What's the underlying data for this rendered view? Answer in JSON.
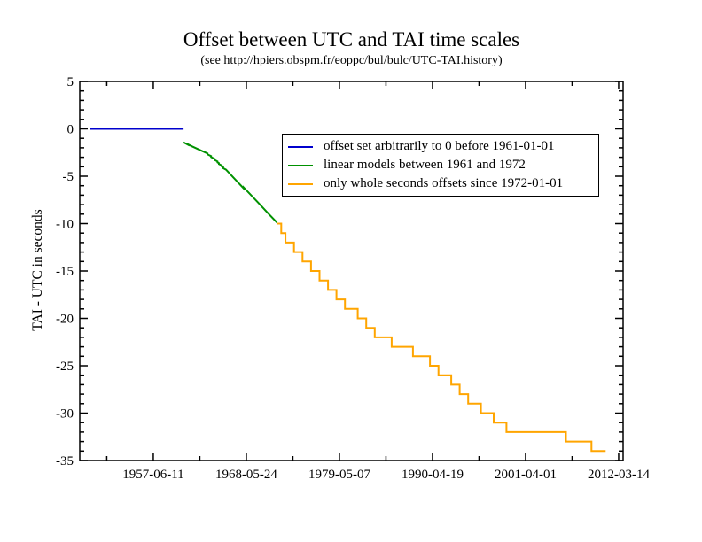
{
  "title": "Offset between UTC and TAI time scales",
  "subtitle": "(see http://hpiers.obspm.fr/eoppc/bul/bulc/UTC-TAI.history)",
  "y_axis": {
    "label": "TAI - UTC in seconds",
    "max": 5,
    "min": -35,
    "major_ticks": [
      5,
      0,
      -5,
      -10,
      -15,
      -20,
      -25,
      -30,
      -35
    ],
    "minor_step": 1
  },
  "x_axis": {
    "min_date": "1948-10-16",
    "max_date": "2012-09-22",
    "tick_labels": [
      "1957-06-11",
      "1968-05-24",
      "1979-05-07",
      "1990-04-19",
      "2001-04-01",
      "2012-03-14"
    ]
  },
  "chart_data": {
    "type": "line",
    "title": "Offset between UTC and TAI time scales",
    "subtitle": "(see http://hpiers.obspm.fr/eoppc/bul/bulc/UTC-TAI.history)",
    "ylabel": "TAI - UTC in seconds",
    "ylim": [
      -35,
      5
    ],
    "x_range": [
      "1948-10-16",
      "2012-09-22"
    ],
    "grid": false,
    "legend_position": "upper-center-right",
    "series": [
      {
        "name": "offset set arbitrarily to 0 before 1961-01-01",
        "color": "#0000cd",
        "points": [
          [
            "1950-01-01",
            0
          ],
          [
            "1961-01-01",
            0
          ]
        ]
      },
      {
        "name": "linear models between 1961 and 1972",
        "color": "#009100",
        "points": [
          [
            "1961-01-01",
            -1.42
          ],
          [
            "1961-08-01",
            -1.7
          ],
          [
            "1961-08-01",
            -1.65
          ],
          [
            "1962-01-01",
            -1.85
          ],
          [
            "1963-01-01",
            -2.26
          ],
          [
            "1963-11-01",
            -2.6
          ],
          [
            "1963-11-01",
            -2.7
          ],
          [
            "1964-01-01",
            -2.77
          ],
          [
            "1964-04-01",
            -2.88
          ],
          [
            "1964-04-01",
            -2.98
          ],
          [
            "1964-09-01",
            -3.18
          ],
          [
            "1964-09-01",
            -3.28
          ],
          [
            "1965-01-01",
            -3.44
          ],
          [
            "1965-01-01",
            -3.54
          ],
          [
            "1965-03-01",
            -3.62
          ],
          [
            "1965-03-01",
            -3.72
          ],
          [
            "1965-07-01",
            -3.87
          ],
          [
            "1965-07-01",
            -3.97
          ],
          [
            "1965-09-01",
            -4.05
          ],
          [
            "1965-09-01",
            -4.15
          ],
          [
            "1966-01-01",
            -4.31
          ],
          [
            "1967-01-01",
            -5.26
          ],
          [
            "1968-02-01",
            -6.29
          ],
          [
            "1968-02-01",
            -6.19
          ],
          [
            "1969-01-01",
            -7.05
          ],
          [
            "1970-01-01",
            -8.0
          ],
          [
            "1971-01-01",
            -8.95
          ],
          [
            "1972-01-01",
            -9.89
          ]
        ]
      },
      {
        "name": "only whole seconds offsets since 1972-01-01",
        "color": "#ffa500",
        "points": [
          [
            "1972-01-01",
            -10
          ],
          [
            "1972-07-01",
            -10
          ],
          [
            "1972-07-01",
            -11
          ],
          [
            "1973-01-01",
            -11
          ],
          [
            "1973-01-01",
            -12
          ],
          [
            "1974-01-01",
            -12
          ],
          [
            "1974-01-01",
            -13
          ],
          [
            "1975-01-01",
            -13
          ],
          [
            "1975-01-01",
            -14
          ],
          [
            "1976-01-01",
            -14
          ],
          [
            "1976-01-01",
            -15
          ],
          [
            "1977-01-01",
            -15
          ],
          [
            "1977-01-01",
            -16
          ],
          [
            "1978-01-01",
            -16
          ],
          [
            "1978-01-01",
            -17
          ],
          [
            "1979-01-01",
            -17
          ],
          [
            "1979-01-01",
            -18
          ],
          [
            "1980-01-01",
            -18
          ],
          [
            "1980-01-01",
            -19
          ],
          [
            "1981-07-01",
            -19
          ],
          [
            "1981-07-01",
            -20
          ],
          [
            "1982-07-01",
            -20
          ],
          [
            "1982-07-01",
            -21
          ],
          [
            "1983-07-01",
            -21
          ],
          [
            "1983-07-01",
            -22
          ],
          [
            "1985-07-01",
            -22
          ],
          [
            "1985-07-01",
            -23
          ],
          [
            "1988-01-01",
            -23
          ],
          [
            "1988-01-01",
            -24
          ],
          [
            "1990-01-01",
            -24
          ],
          [
            "1990-01-01",
            -25
          ],
          [
            "1991-01-01",
            -25
          ],
          [
            "1991-01-01",
            -26
          ],
          [
            "1992-07-01",
            -26
          ],
          [
            "1992-07-01",
            -27
          ],
          [
            "1993-07-01",
            -27
          ],
          [
            "1993-07-01",
            -28
          ],
          [
            "1994-07-01",
            -28
          ],
          [
            "1994-07-01",
            -29
          ],
          [
            "1996-01-01",
            -29
          ],
          [
            "1996-01-01",
            -30
          ],
          [
            "1997-07-01",
            -30
          ],
          [
            "1997-07-01",
            -31
          ],
          [
            "1999-01-01",
            -31
          ],
          [
            "1999-01-01",
            -32
          ],
          [
            "2006-01-01",
            -32
          ],
          [
            "2006-01-01",
            -33
          ],
          [
            "2009-01-01",
            -33
          ],
          [
            "2009-01-01",
            -34
          ],
          [
            "2010-09-01",
            -34
          ]
        ]
      }
    ]
  },
  "legend": {
    "items": [
      {
        "label": "offset set arbitrarily to 0 before 1961-01-01",
        "color": "#0000cd"
      },
      {
        "label": "linear models between 1961 and 1972",
        "color": "#009100"
      },
      {
        "label": "only whole seconds offsets since 1972-01-01",
        "color": "#ffa500"
      }
    ]
  }
}
